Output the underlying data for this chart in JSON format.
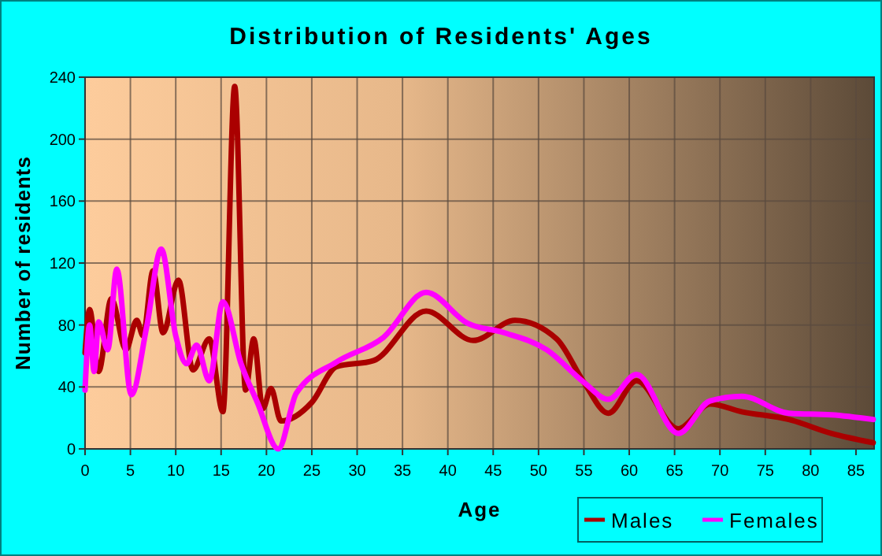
{
  "chart_data": {
    "type": "line",
    "title": "Distribution of Residents' Ages",
    "xlabel": "Age",
    "ylabel": "Number of residents",
    "xlim": [
      0,
      87
    ],
    "xticks": [
      0,
      5,
      10,
      15,
      20,
      25,
      30,
      35,
      40,
      45,
      50,
      55,
      60,
      65,
      70,
      75,
      80,
      85
    ],
    "ylim": [
      0,
      240
    ],
    "yticks": [
      0,
      40,
      80,
      120,
      160,
      200,
      240
    ],
    "grid": true,
    "legend": "bottom right",
    "line_style": "solid",
    "marker": "none",
    "series": [
      {
        "name": "Males",
        "color": "#aa0000",
        "x": [
          0,
          0.5,
          1.5,
          2.9,
          4.5,
          5.7,
          6.4,
          7.5,
          8.6,
          10.3,
          11.9,
          13.7,
          15.2,
          16.5,
          17.7,
          18.6,
          19.6,
          20.5,
          21.6,
          25,
          27.7,
          31.8,
          37.6,
          42.8,
          47.4,
          52,
          55,
          57.7,
          60.8,
          65.4,
          68.9,
          72.4,
          77.6,
          82.3,
          86.9
        ],
        "values": [
          62,
          90,
          50,
          97,
          64,
          83,
          73,
          115,
          75,
          109,
          51,
          71,
          24,
          234,
          38,
          71,
          26,
          39,
          18,
          30,
          53,
          57,
          89,
          70,
          83,
          71,
          43,
          23,
          44,
          13,
          29,
          24,
          19,
          10,
          4
        ]
      },
      {
        "name": "Females",
        "color": "#ff00ff",
        "x": [
          0,
          0.5,
          1,
          1.5,
          2.5,
          3.5,
          5.1,
          6.8,
          8.4,
          10,
          11.2,
          12.3,
          13.7,
          15.2,
          17.2,
          19,
          21.3,
          23.3,
          27.7,
          32.9,
          37.6,
          42.2,
          46.2,
          50.9,
          55,
          57.7,
          60.8,
          65.4,
          68.9,
          72.4,
          77.6,
          82.3,
          86.9
        ],
        "values": [
          38,
          80,
          50,
          82,
          64,
          116,
          35,
          79,
          129,
          73,
          55,
          67,
          44,
          95,
          55,
          30,
          0,
          36,
          56,
          72,
          101,
          81,
          75,
          64,
          43,
          32,
          48,
          10,
          31,
          34,
          23,
          22,
          19
        ]
      }
    ]
  }
}
